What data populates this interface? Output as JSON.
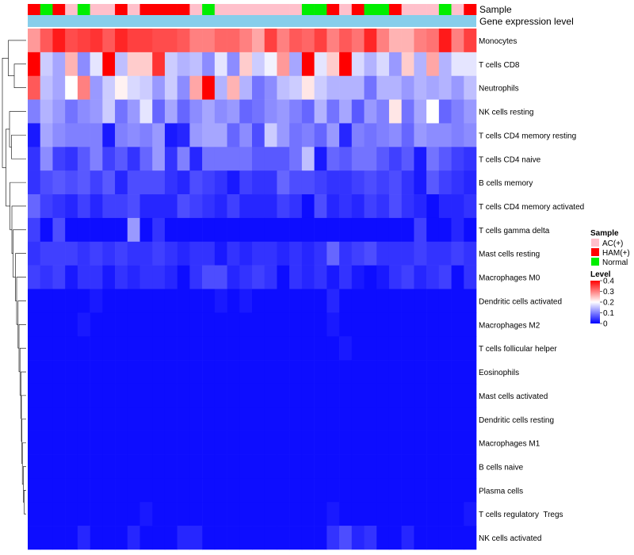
{
  "chart_data": {
    "type": "heatmap",
    "annotation_labels": {
      "sample": "Sample",
      "gene_expression": "Gene expression level"
    },
    "sample_groups": [
      "HAM(+)",
      "Normal",
      "HAM(+)",
      "AC(+)",
      "Normal",
      "AC(+)",
      "AC(+)",
      "HAM(+)",
      "AC(+)",
      "HAM(+)",
      "HAM(+)",
      "HAM(+)",
      "HAM(+)",
      "AC(+)",
      "Normal",
      "AC(+)",
      "AC(+)",
      "AC(+)",
      "AC(+)",
      "AC(+)",
      "AC(+)",
      "AC(+)",
      "Normal",
      "Normal",
      "HAM(+)",
      "AC(+)",
      "HAM(+)",
      "Normal",
      "Normal",
      "HAM(+)",
      "AC(+)",
      "AC(+)",
      "AC(+)",
      "Normal",
      "AC(+)",
      "HAM(+)"
    ],
    "rows": [
      {
        "label": "Monocytes",
        "values": [
          0.28,
          0.33,
          0.38,
          0.34,
          0.35,
          0.36,
          0.33,
          0.37,
          0.35,
          0.35,
          0.34,
          0.34,
          0.33,
          0.3,
          0.3,
          0.32,
          0.32,
          0.3,
          0.27,
          0.35,
          0.3,
          0.33,
          0.32,
          0.35,
          0.3,
          0.33,
          0.31,
          0.37,
          0.3,
          0.26,
          0.26,
          0.3,
          0.31,
          0.38,
          0.3,
          0.35
        ]
      },
      {
        "label": "T cells CD8",
        "values": [
          0.4,
          0.16,
          0.13,
          0.26,
          0.11,
          0.18,
          0.4,
          0.15,
          0.24,
          0.24,
          0.36,
          0.16,
          0.14,
          0.15,
          0.11,
          0.18,
          0.11,
          0.24,
          0.16,
          0.19,
          0.28,
          0.13,
          0.4,
          0.18,
          0.24,
          0.4,
          0.17,
          0.14,
          0.17,
          0.12,
          0.24,
          0.14,
          0.27,
          0.14,
          0.18,
          0.18
        ]
      },
      {
        "label": "Neutrophils",
        "values": [
          0.33,
          0.15,
          0.13,
          0.2,
          0.3,
          0.12,
          0.16,
          0.21,
          0.17,
          0.16,
          0.12,
          0.16,
          0.11,
          0.27,
          0.4,
          0.14,
          0.26,
          0.14,
          0.09,
          0.11,
          0.15,
          0.16,
          0.22,
          0.16,
          0.14,
          0.14,
          0.14,
          0.09,
          0.14,
          0.14,
          0.12,
          0.14,
          0.13,
          0.14,
          0.12,
          0.15
        ]
      },
      {
        "label": "NK cells resting",
        "values": [
          0.1,
          0.14,
          0.12,
          0.09,
          0.11,
          0.12,
          0.16,
          0.09,
          0.12,
          0.18,
          0.08,
          0.13,
          0.08,
          0.11,
          0.13,
          0.11,
          0.12,
          0.08,
          0.09,
          0.11,
          0.12,
          0.1,
          0.08,
          0.14,
          0.09,
          0.13,
          0.07,
          0.12,
          0.1,
          0.22,
          0.09,
          0.13,
          0.2,
          0.08,
          0.1,
          0.12
        ]
      },
      {
        "label": "T cells CD4 memory resting",
        "values": [
          0.02,
          0.13,
          0.11,
          0.1,
          0.1,
          0.1,
          0.02,
          0.1,
          0.11,
          0.1,
          0.12,
          0.02,
          0.03,
          0.12,
          0.13,
          0.13,
          0.08,
          0.11,
          0.06,
          0.16,
          0.12,
          0.09,
          0.1,
          0.08,
          0.12,
          0.03,
          0.1,
          0.09,
          0.1,
          0.11,
          0.08,
          0.12,
          0.11,
          0.11,
          0.1,
          0.11
        ]
      },
      {
        "label": "T cells CD4 naive",
        "values": [
          0.04,
          0.11,
          0.05,
          0.04,
          0.07,
          0.1,
          0.05,
          0.07,
          0.04,
          0.08,
          0.12,
          0.04,
          0.1,
          0.03,
          0.09,
          0.09,
          0.09,
          0.09,
          0.07,
          0.07,
          0.07,
          0.09,
          0.15,
          0.02,
          0.08,
          0.07,
          0.09,
          0.09,
          0.07,
          0.05,
          0.07,
          0.02,
          0.09,
          0.07,
          0.05,
          0.04
        ]
      },
      {
        "label": "B cells memory",
        "values": [
          0.04,
          0.06,
          0.07,
          0.06,
          0.07,
          0.05,
          0.07,
          0.03,
          0.06,
          0.06,
          0.06,
          0.04,
          0.03,
          0.06,
          0.05,
          0.04,
          0.02,
          0.05,
          0.04,
          0.04,
          0.08,
          0.06,
          0.06,
          0.05,
          0.04,
          0.04,
          0.05,
          0.06,
          0.05,
          0.06,
          0.04,
          0.02,
          0.07,
          0.05,
          0.04,
          0.03
        ]
      },
      {
        "label": "T cells CD4 memory activated",
        "values": [
          0.08,
          0.05,
          0.04,
          0.03,
          0.05,
          0.03,
          0.05,
          0.05,
          0.06,
          0.03,
          0.03,
          0.03,
          0.06,
          0.05,
          0.04,
          0.03,
          0.05,
          0.03,
          0.03,
          0.03,
          0.05,
          0.04,
          0.01,
          0.06,
          0.03,
          0.04,
          0.03,
          0.05,
          0.04,
          0.06,
          0.04,
          0.03,
          0.01,
          0.03,
          0.03,
          0.04
        ]
      },
      {
        "label": "T cells gamma delta",
        "values": [
          0.05,
          0.01,
          0.06,
          0.01,
          0.01,
          0.01,
          0.01,
          0.01,
          0.12,
          0.01,
          0.04,
          0.01,
          0.01,
          0.01,
          0.01,
          0.01,
          0.01,
          0.01,
          0.01,
          0.01,
          0.01,
          0.01,
          0.01,
          0.01,
          0.01,
          0.01,
          0.01,
          0.01,
          0.01,
          0.01,
          0.01,
          0.05,
          0.01,
          0.01,
          0.03,
          0.01
        ]
      },
      {
        "label": "Mast cells resting",
        "values": [
          0.04,
          0.05,
          0.05,
          0.05,
          0.04,
          0.05,
          0.04,
          0.05,
          0.04,
          0.04,
          0.05,
          0.04,
          0.03,
          0.04,
          0.04,
          0.02,
          0.04,
          0.03,
          0.04,
          0.04,
          0.03,
          0.04,
          0.03,
          0.04,
          0.08,
          0.04,
          0.05,
          0.06,
          0.04,
          0.04,
          0.04,
          0.05,
          0.04,
          0.04,
          0.05,
          0.04
        ]
      },
      {
        "label": "Macrophages M0",
        "values": [
          0.05,
          0.04,
          0.05,
          0.02,
          0.04,
          0.04,
          0.02,
          0.04,
          0.03,
          0.04,
          0.04,
          0.03,
          0.01,
          0.04,
          0.06,
          0.06,
          0.03,
          0.04,
          0.05,
          0.04,
          0.01,
          0.04,
          0.03,
          0.04,
          0.02,
          0.04,
          0.02,
          0.01,
          0.02,
          0.04,
          0.05,
          0.03,
          0.04,
          0.05,
          0.01,
          0.04
        ]
      },
      {
        "label": "Dendritic cells activated",
        "values": [
          0.01,
          0.01,
          0.01,
          0.01,
          0.01,
          0.02,
          0.01,
          0.01,
          0.01,
          0.01,
          0.01,
          0.01,
          0.01,
          0.01,
          0.01,
          0.02,
          0.01,
          0.02,
          0.01,
          0.01,
          0.01,
          0.01,
          0.01,
          0.01,
          0.03,
          0.01,
          0.01,
          0.01,
          0.01,
          0.01,
          0.01,
          0.01,
          0.01,
          0.01,
          0.01,
          0.01
        ]
      },
      {
        "label": "Macrophages M2",
        "values": [
          0.01,
          0.01,
          0.01,
          0.01,
          0.02,
          0.01,
          0.01,
          0.01,
          0.01,
          0.01,
          0.01,
          0.01,
          0.01,
          0.01,
          0.01,
          0.01,
          0.01,
          0.01,
          0.01,
          0.01,
          0.01,
          0.01,
          0.01,
          0.01,
          0.02,
          0.01,
          0.01,
          0.01,
          0.01,
          0.01,
          0.01,
          0.01,
          0.01,
          0.01,
          0.01,
          0.01
        ]
      },
      {
        "label": "T cells follicular helper",
        "values": [
          0.01,
          0.01,
          0.01,
          0.01,
          0.01,
          0.01,
          0.01,
          0.01,
          0.01,
          0.01,
          0.01,
          0.01,
          0.01,
          0.01,
          0.01,
          0.01,
          0.01,
          0.01,
          0.01,
          0.01,
          0.01,
          0.01,
          0.01,
          0.01,
          0.01,
          0.02,
          0.01,
          0.01,
          0.01,
          0.01,
          0.01,
          0.01,
          0.01,
          0.01,
          0.01,
          0.01
        ]
      },
      {
        "label": "Eosinophils",
        "values": [
          0.01,
          0.01,
          0.01,
          0.01,
          0.01,
          0.01,
          0.01,
          0.01,
          0.01,
          0.01,
          0.01,
          0.01,
          0.01,
          0.01,
          0.01,
          0.01,
          0.01,
          0.01,
          0.01,
          0.01,
          0.01,
          0.01,
          0.01,
          0.01,
          0.01,
          0.01,
          0.01,
          0.01,
          0.01,
          0.01,
          0.01,
          0.01,
          0.01,
          0.01,
          0.01,
          0.01
        ]
      },
      {
        "label": "Mast cells activated",
        "values": [
          0.01,
          0.01,
          0.01,
          0.01,
          0.01,
          0.01,
          0.01,
          0.01,
          0.01,
          0.01,
          0.01,
          0.01,
          0.01,
          0.01,
          0.01,
          0.01,
          0.01,
          0.01,
          0.01,
          0.01,
          0.01,
          0.01,
          0.01,
          0.01,
          0.01,
          0.01,
          0.01,
          0.01,
          0.01,
          0.01,
          0.01,
          0.01,
          0.01,
          0.01,
          0.01,
          0.01
        ]
      },
      {
        "label": "Dendritic cells resting",
        "values": [
          0.01,
          0.01,
          0.01,
          0.01,
          0.01,
          0.01,
          0.01,
          0.01,
          0.01,
          0.01,
          0.01,
          0.01,
          0.01,
          0.01,
          0.01,
          0.01,
          0.01,
          0.01,
          0.01,
          0.01,
          0.01,
          0.01,
          0.01,
          0.01,
          0.01,
          0.01,
          0.01,
          0.01,
          0.01,
          0.01,
          0.01,
          0.01,
          0.01,
          0.01,
          0.01,
          0.01
        ]
      },
      {
        "label": "Macrophages M1",
        "values": [
          0.01,
          0.01,
          0.01,
          0.01,
          0.01,
          0.01,
          0.01,
          0.01,
          0.01,
          0.01,
          0.01,
          0.01,
          0.01,
          0.01,
          0.01,
          0.01,
          0.01,
          0.01,
          0.01,
          0.01,
          0.01,
          0.01,
          0.01,
          0.01,
          0.01,
          0.01,
          0.01,
          0.01,
          0.01,
          0.01,
          0.01,
          0.01,
          0.01,
          0.01,
          0.01,
          0.01
        ]
      },
      {
        "label": "B cells naive",
        "values": [
          0.01,
          0.01,
          0.01,
          0.01,
          0.01,
          0.01,
          0.01,
          0.01,
          0.01,
          0.01,
          0.01,
          0.01,
          0.01,
          0.01,
          0.01,
          0.01,
          0.01,
          0.01,
          0.01,
          0.01,
          0.01,
          0.01,
          0.01,
          0.01,
          0.01,
          0.01,
          0.01,
          0.01,
          0.01,
          0.01,
          0.01,
          0.01,
          0.01,
          0.01,
          0.01,
          0.01
        ]
      },
      {
        "label": "Plasma cells",
        "values": [
          0.01,
          0.01,
          0.01,
          0.01,
          0.01,
          0.01,
          0.01,
          0.01,
          0.01,
          0.01,
          0.01,
          0.01,
          0.01,
          0.01,
          0.01,
          0.01,
          0.01,
          0.01,
          0.01,
          0.01,
          0.01,
          0.01,
          0.01,
          0.01,
          0.01,
          0.01,
          0.01,
          0.01,
          0.01,
          0.01,
          0.01,
          0.01,
          0.01,
          0.01,
          0.01,
          0.01
        ]
      },
      {
        "label": "T cells regulatory  Tregs",
        "values": [
          0.01,
          0.01,
          0.01,
          0.01,
          0.01,
          0.01,
          0.01,
          0.01,
          0.01,
          0.02,
          0.01,
          0.01,
          0.01,
          0.01,
          0.01,
          0.01,
          0.01,
          0.01,
          0.01,
          0.01,
          0.01,
          0.01,
          0.01,
          0.01,
          0.02,
          0.01,
          0.01,
          0.01,
          0.01,
          0.01,
          0.01,
          0.01,
          0.01,
          0.01,
          0.01,
          0.02
        ]
      },
      {
        "label": "NK cells activated",
        "values": [
          0.01,
          0.01,
          0.01,
          0.01,
          0.03,
          0.01,
          0.01,
          0.01,
          0.03,
          0.01,
          0.01,
          0.01,
          0.03,
          0.03,
          0.01,
          0.01,
          0.01,
          0.01,
          0.01,
          0.01,
          0.01,
          0.01,
          0.01,
          0.01,
          0.04,
          0.06,
          0.03,
          0.04,
          0.01,
          0.01,
          0.03,
          0.01,
          0.01,
          0.01,
          0.01,
          0.01
        ]
      }
    ],
    "dendrogram_edges": [
      [
        19,
        20,
        0.09
      ],
      [
        18,
        19,
        0.12
      ],
      [
        17,
        18,
        0.16
      ],
      [
        16,
        17,
        0.18
      ],
      [
        15,
        16,
        0.2
      ],
      [
        14,
        15,
        0.22
      ],
      [
        13,
        14,
        0.26
      ],
      [
        12,
        13,
        0.3
      ],
      [
        11,
        12,
        0.34
      ],
      [
        10,
        11,
        0.4
      ],
      [
        9,
        10,
        0.45
      ],
      [
        8,
        9,
        0.55
      ],
      [
        7,
        8,
        0.6
      ],
      [
        6,
        7,
        0.68
      ],
      [
        4,
        5,
        0.62
      ],
      [
        3,
        4,
        0.7
      ],
      [
        1,
        2,
        0.5
      ],
      [
        0,
        1,
        0.75
      ],
      [
        3,
        6,
        0.85
      ],
      [
        0,
        3,
        1.0
      ]
    ],
    "legend": {
      "sample_title": "Sample",
      "sample_entries": [
        {
          "label": "AC(+)",
          "color": "#FFC0CB"
        },
        {
          "label": "HAM(+)",
          "color": "#FF0000"
        },
        {
          "label": "Normal",
          "color": "#00EE00"
        }
      ],
      "level_title": "Level",
      "level_ticks": [
        "0.4",
        "0.3",
        "0.2",
        "0.1",
        "0"
      ],
      "scale": {
        "min": 0,
        "max": 0.4,
        "low": "#0000FF",
        "mid": "#FFFFFF",
        "high": "#FF0000",
        "mid_value": 0.2
      }
    },
    "gene_expression_color": "#87CEEB"
  }
}
